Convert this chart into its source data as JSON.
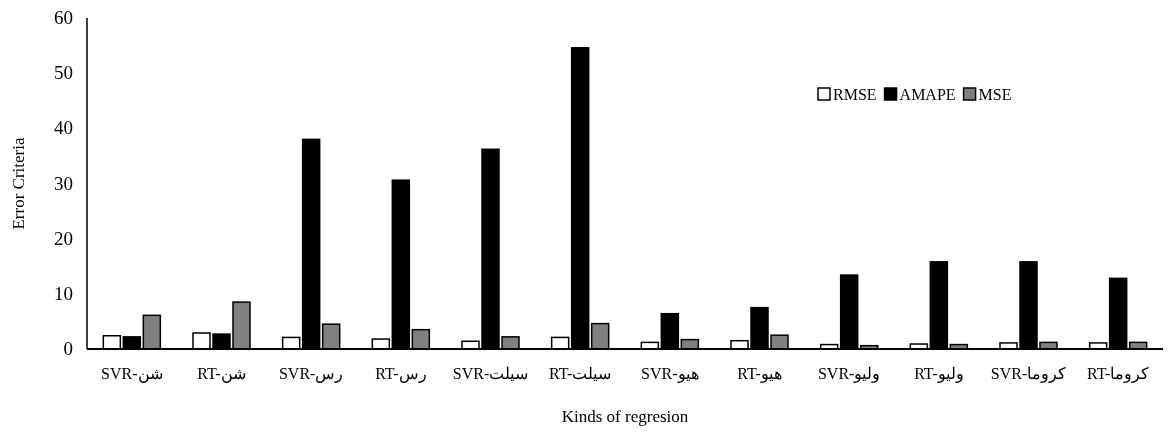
{
  "chart_data": {
    "type": "bar",
    "xlabel": "Kinds of regresion",
    "ylabel": "Error Criteria",
    "categories": [
      "SVR-شن",
      "RT-شن",
      "SVR-رس",
      "RT-رس",
      "SVR-سیلت",
      "RT-سیلت",
      "SVR-هیو",
      "RT-هیو",
      "SVR-ولیو",
      "RT-ولیو",
      "SVR-کروما",
      "RT-کروما"
    ],
    "series": [
      {
        "name": "RMSE",
        "color": "#ffffff",
        "values": [
          2.4,
          2.9,
          2.1,
          1.8,
          1.4,
          2.1,
          1.2,
          1.5,
          0.8,
          0.9,
          1.1,
          1.1
        ]
      },
      {
        "name": "AMAPE",
        "color": "#000000",
        "values": [
          2.2,
          2.7,
          38.0,
          30.6,
          36.2,
          54.6,
          6.4,
          7.5,
          13.4,
          15.8,
          15.8,
          12.8
        ]
      },
      {
        "name": "MSE",
        "color": "#808080",
        "values": [
          6.1,
          8.5,
          4.5,
          3.5,
          2.2,
          4.6,
          1.7,
          2.5,
          0.6,
          0.8,
          1.2,
          1.2
        ]
      }
    ],
    "ylim": [
      0,
      60
    ],
    "yticks": [
      0,
      10,
      20,
      30,
      40,
      50,
      60
    ],
    "legend": "top right"
  }
}
